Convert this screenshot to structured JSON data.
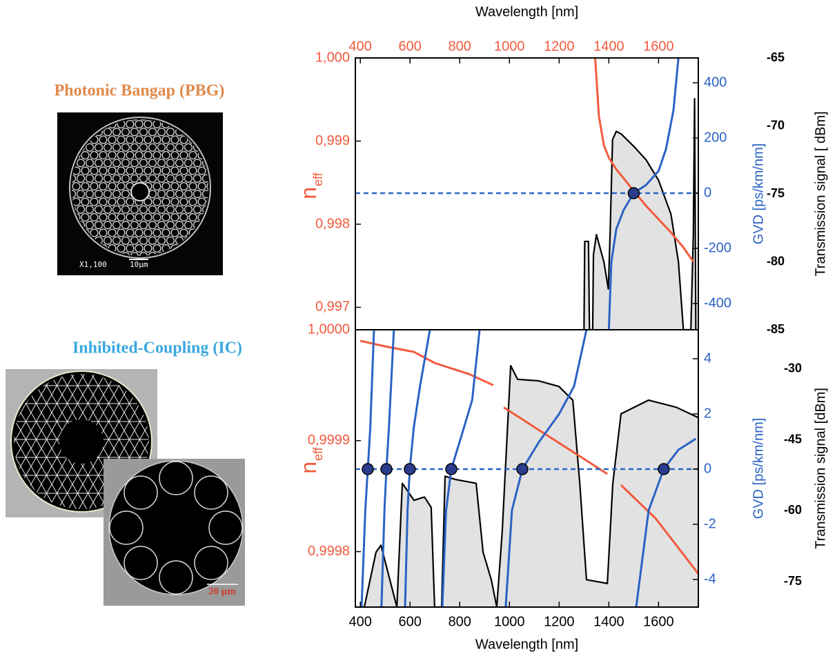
{
  "images": [
    {
      "title": "Photonic Bangap (PBG)",
      "labels": [
        "X1,100",
        "10µm"
      ]
    },
    {
      "title": "Inhibited-Coupling (IC)",
      "labels": [
        "20 µm"
      ]
    }
  ],
  "chart_data": [
    {
      "type": "line",
      "xlabel": "Wavelength [nm]",
      "xaxis_position": "top",
      "ylabel": {
        "text": "n",
        "sub": "eff"
      },
      "y2label": "GVD [ps/km/nm]",
      "y3label": "Transmission signal [ dBm]",
      "axis_colors": {
        "x": "#f25a3c",
        "y": "#f25a3c",
        "y2": "#2a62c4",
        "y3": "#000000"
      },
      "xlim": [
        380,
        1760
      ],
      "xticks": [
        400,
        600,
        800,
        1000,
        1200,
        1400,
        1600
      ],
      "ylim": [
        0.99673,
        1.0
      ],
      "yticks": [
        {
          "value": 1.0,
          "label": "1,000"
        },
        {
          "value": 0.999,
          "label": "0,999"
        },
        {
          "value": 0.998,
          "label": "0,998"
        },
        {
          "value": 0.997,
          "label": "0,997"
        }
      ],
      "y2lim": [
        -495,
        490
      ],
      "y2ticks": [
        -400,
        -200,
        0,
        200,
        400
      ],
      "y3lim": [
        -85,
        -65
      ],
      "y3ticks": [
        -85,
        -80,
        -75,
        -70,
        -65
      ],
      "reference_lines": [
        {
          "axis": "y2",
          "value": 0,
          "color": "#2a62c4",
          "style": "dashed"
        }
      ],
      "series": [
        {
          "axis": "y3",
          "color": "#000000",
          "fill": "#e2e2e2",
          "x": [
            1300,
            1303,
            1318,
            1322,
            1335,
            1338,
            1350,
            1365,
            1380,
            1398,
            1405,
            1415,
            1430,
            1450,
            1500,
            1550,
            1600,
            1650,
            1680,
            1700,
            1730,
            1740,
            1745,
            1750
          ],
          "values": [
            -85,
            -78.5,
            -78.5,
            -85,
            -85,
            -79.5,
            -78,
            -79,
            -80,
            -82,
            -78,
            -71,
            -70.4,
            -70.6,
            -71.5,
            -72.5,
            -74,
            -76.5,
            -80,
            -85,
            -85,
            -78,
            -68,
            -85
          ]
        },
        {
          "axis": "y",
          "color": "#f25a3c",
          "x": [
            1345,
            1360,
            1380,
            1400,
            1430,
            1460,
            1500,
            1550,
            1600,
            1650,
            1700,
            1740
          ],
          "values": [
            1.0,
            0.9993,
            0.99895,
            0.9988,
            0.99866,
            0.99855,
            0.9984,
            0.99822,
            0.99806,
            0.9979,
            0.99772,
            0.99755
          ]
        },
        {
          "axis": "y2",
          "color": "#2a62c4",
          "x": [
            1400,
            1410,
            1430,
            1460,
            1500,
            1550,
            1600,
            1630,
            1660,
            1680
          ],
          "values": [
            -495,
            -250,
            -130,
            -60,
            0,
            30,
            80,
            160,
            300,
            490
          ]
        },
        {
          "axis": "y2",
          "color": "#2b3d8c",
          "style": "markers",
          "x": [
            1500
          ],
          "values": [
            0
          ]
        }
      ]
    },
    {
      "type": "line",
      "xlabel": "Wavelength [nm]",
      "xaxis_position": "bottom",
      "ylabel": {
        "text": "n",
        "sub": "eff"
      },
      "y2label": "GVD [ps/km/nm]",
      "y3label": "Transmission signal [dBm]",
      "axis_colors": {
        "x": "#000000",
        "y": "#f25a3c",
        "y2": "#2a62c4",
        "y3": "#000000"
      },
      "xlim": [
        380,
        1760
      ],
      "xticks": [
        400,
        600,
        800,
        1000,
        1200,
        1400,
        1600
      ],
      "ylim": [
        0.99975,
        1.0
      ],
      "yticks": [
        {
          "value": 1.0,
          "label": "1,0000"
        },
        {
          "value": 0.9999,
          "label": "0,9999"
        },
        {
          "value": 0.9998,
          "label": "0,9998"
        }
      ],
      "y2lim": [
        -5,
        5.05
      ],
      "y2ticks": [
        -4,
        -2,
        0,
        2,
        4
      ],
      "y3lim": [
        -80.4,
        -21.7
      ],
      "y3ticks": [
        -75,
        -60,
        -45,
        -30
      ],
      "reference_lines": [
        {
          "axis": "y2",
          "value": 0,
          "color": "#2a62c4",
          "style": "dashed"
        }
      ],
      "series": [
        {
          "axis": "y3",
          "color": "#000000",
          "fill": "#e2e2e2",
          "x": [
            416,
            463,
            483,
            547,
            569,
            616,
            658,
            685,
            699,
            727,
            741,
            783,
            866,
            894,
            927,
            949,
            971,
            1005,
            1033,
            1116,
            1199,
            1255,
            1283,
            1310,
            1394,
            1416,
            1449,
            1560,
            1671,
            1760
          ],
          "values": [
            -80.4,
            -68.8,
            -67.3,
            -80.4,
            -54.2,
            -57.8,
            -57.1,
            -59.3,
            -80.4,
            -80.4,
            -52.7,
            -53.4,
            -54.2,
            -68.8,
            -74.6,
            -80.4,
            -64.4,
            -29.3,
            -32.2,
            -32.5,
            -33.7,
            -36.6,
            -54.2,
            -74.6,
            -75.4,
            -54.2,
            -39.5,
            -36.6,
            -38.1,
            -40.3
          ]
        },
        {
          "axis": "y",
          "color": "#f25a3c",
          "x": [
            400,
            500,
            616,
            700,
            838,
            935,
            940,
            977,
            1116,
            1255,
            1394,
            1400,
            1449,
            1588,
            1760
          ],
          "values": [
            0.99999,
            0.999985,
            0.99998,
            0.99997,
            0.99996,
            0.99995,
            null,
            0.99993,
            0.99991,
            0.99989,
            0.99987,
            null,
            0.99986,
            0.99983,
            0.99978
          ]
        },
        {
          "axis": "y2",
          "color": "#2a62c4",
          "x": [
            405,
            420,
            430,
            440,
            455,
            470,
            485,
            497,
            505,
            515,
            535,
            560,
            580,
            590,
            599,
            615,
            640,
            680,
            700,
            730,
            745,
            766,
            800,
            850,
            880,
            950,
            985,
            1010,
            1052,
            1120,
            1200,
            1260,
            1310,
            1400,
            1510,
            1560,
            1621,
            1680,
            1750
          ],
          "values": [
            -5,
            -1.5,
            0,
            1.5,
            5.05,
            null,
            -5,
            -1.5,
            0,
            1.5,
            5.05,
            null,
            -5,
            -1.5,
            0,
            1.5,
            3,
            5.05,
            null,
            -5,
            -1.5,
            0,
            1,
            2.5,
            5.05,
            null,
            -5,
            -1.5,
            0,
            1,
            2,
            3,
            5.05,
            null,
            -5,
            -1.5,
            0,
            0.7,
            1.1
          ]
        },
        {
          "axis": "y2",
          "color": "#2b3d8c",
          "style": "markers",
          "x": [
            430,
            505,
            599,
            766,
            1052,
            1621
          ],
          "values": [
            0,
            0,
            0,
            0,
            0,
            0
          ]
        }
      ]
    }
  ]
}
